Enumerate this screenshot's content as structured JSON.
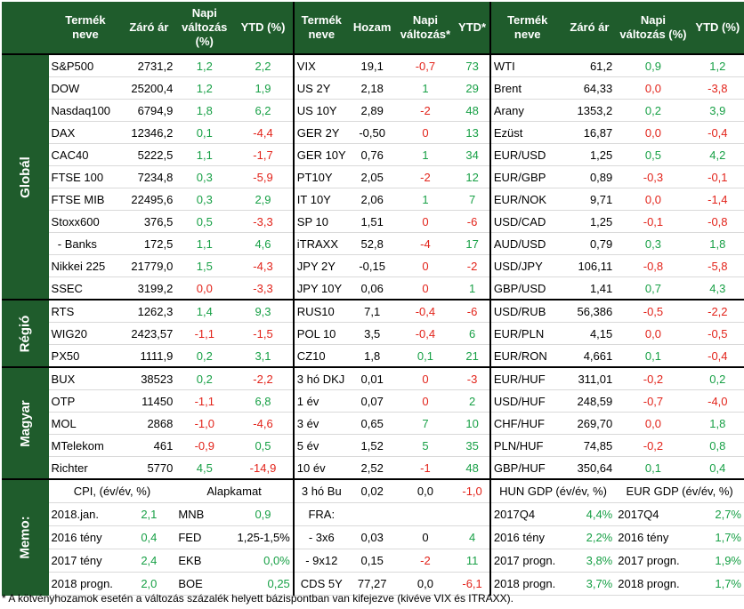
{
  "headers": {
    "col1": "Termék neve",
    "col2": "Záró ár",
    "col3": "Napi változás (%)",
    "col4": "YTD (%)",
    "col5": "Termék neve",
    "col6": "Hozam",
    "col7": "Napi változás*",
    "col8": "YTD*",
    "col9": "Termék neve",
    "col10": "Záró ár",
    "col11": "Napi változás (%)",
    "col12": "YTD (%)"
  },
  "sections": [
    {
      "label": "Globál",
      "rows": [
        [
          "S&P500",
          "2731,2",
          "1,2",
          "2,2",
          "VIX",
          "19,1",
          "-0,7",
          "73",
          "WTI",
          "61,2",
          "0,9",
          "1,2"
        ],
        [
          "DOW",
          "25200,4",
          "1,2",
          "1,9",
          "US 2Y",
          "2,18",
          "1",
          "29",
          "Brent",
          "64,33",
          "0,0",
          "-3,8"
        ],
        [
          "Nasdaq100",
          "6794,9",
          "1,8",
          "6,2",
          "US 10Y",
          "2,89",
          "-2",
          "48",
          "Arany",
          "1353,2",
          "0,2",
          "3,9"
        ],
        [
          "DAX",
          "12346,2",
          "0,1",
          "-4,4",
          "GER 2Y",
          "-0,50",
          "0",
          "13",
          "Ezüst",
          "16,87",
          "0,0",
          "-0,4"
        ],
        [
          "CAC40",
          "5222,5",
          "1,1",
          "-1,7",
          "GER 10Y",
          "0,76",
          "1",
          "34",
          "EUR/USD",
          "1,25",
          "0,5",
          "4,2"
        ],
        [
          "FTSE 100",
          "7234,8",
          "0,3",
          "-5,9",
          "PT10Y",
          "2,05",
          "-2",
          "12",
          "EUR/GBP",
          "0,89",
          "-0,3",
          "-0,1"
        ],
        [
          "FTSE MIB",
          "22495,6",
          "0,3",
          "2,9",
          "IT 10Y",
          "2,06",
          "1",
          "7",
          "EUR/NOK",
          "9,71",
          "0,0",
          "-1,4"
        ],
        [
          "Stoxx600",
          "376,5",
          "0,5",
          "-3,3",
          "SP 10",
          "1,51",
          "0",
          "-6",
          "USD/CAD",
          "1,25",
          "-0,1",
          "-0,8"
        ],
        [
          "  - Banks",
          "172,5",
          "1,1",
          "4,6",
          "iTRAXX",
          "52,8",
          "-4",
          "17",
          "AUD/USD",
          "0,79",
          "0,3",
          "1,8"
        ],
        [
          "Nikkei 225",
          "21779,0",
          "1,5",
          "-4,3",
          "JPY 2Y",
          "-0,15",
          "0",
          "-2",
          "USD/JPY",
          "106,11",
          "-0,8",
          "-5,8"
        ],
        [
          "SSEC",
          "3199,2",
          "0,0",
          "-3,3",
          "JPY 10Y",
          "0,06",
          "0",
          "1",
          "GBP/USD",
          "1,41",
          "0,7",
          "4,3"
        ]
      ]
    },
    {
      "label": "Régió",
      "rows": [
        [
          "RTS",
          "1262,3",
          "1,4",
          "9,3",
          "RUS10",
          "7,1",
          "-0,4",
          "-6",
          "USD/RUB",
          "56,386",
          "-0,5",
          "-2,2"
        ],
        [
          "WIG20",
          "2423,57",
          "-1,1",
          "-1,5",
          "POL 10",
          "3,5",
          "-0,4",
          "6",
          "EUR/PLN",
          "4,15",
          "0,0",
          "-0,5"
        ],
        [
          "PX50",
          "1111,9",
          "0,2",
          "3,1",
          "CZ10",
          "1,8",
          "0,1",
          "21",
          "EUR/RON",
          "4,661",
          "0,1",
          "-0,4"
        ]
      ]
    },
    {
      "label": "Magyar",
      "rows": [
        [
          "BUX",
          "38523",
          "0,2",
          "-2,2",
          "3 hó DKJ",
          "0,01",
          "0",
          "-3",
          "EUR/HUF",
          "311,01",
          "-0,2",
          "0,2"
        ],
        [
          "OTP",
          "11450",
          "-1,1",
          "6,8",
          "1 év",
          "0,07",
          "0",
          "2",
          "USD/HUF",
          "248,59",
          "-0,7",
          "-4,0"
        ],
        [
          "MOL",
          "2868",
          "-1,0",
          "-4,6",
          "3 év",
          "0,65",
          "7",
          "10",
          "CHF/HUF",
          "269,70",
          "0,0",
          "1,8"
        ],
        [
          "MTelekom",
          "461",
          "-0,9",
          "0,5",
          "5 év",
          "1,52",
          "5",
          "35",
          "PLN/HUF",
          "74,85",
          "-0,2",
          "0,8"
        ],
        [
          "Richter",
          "5770",
          "4,5",
          "-14,9",
          "10 év",
          "2,52",
          "-1",
          "48",
          "GBP/HUF",
          "350,64",
          "0,1",
          "0,4"
        ]
      ]
    }
  ],
  "memo": {
    "label": "Memo:",
    "header": [
      "CPI, (év/év, %)",
      "Alapkamat",
      "3 hó Bu",
      "0,02",
      "0,0",
      "-1,0",
      "HUN GDP (év/év, %)",
      "EUR GDP (év/év, %)"
    ],
    "rows": [
      [
        "2018.jan.",
        "2,1",
        "MNB",
        "0,9",
        "FRA:",
        "",
        "",
        "2017Q4",
        "4,4%",
        "2017Q4",
        "2,7%"
      ],
      [
        "2016 tény",
        "0,4",
        "FED",
        "1,25-1,5%",
        "- 3x6",
        "0,03",
        "0",
        "4",
        "2016 tény",
        "2,2%",
        "2016 tény",
        "1,7%"
      ],
      [
        "2017 tény",
        "2,4",
        "EKB",
        "0,0%",
        "- 9x12",
        "0,15",
        "-2",
        "11",
        "2017 progn.",
        "3,8%",
        "2017 progn.",
        "1,9%"
      ],
      [
        "2018 progn.",
        "2,0",
        "BOE",
        "0,25",
        "CDS 5Y",
        "77,27",
        "0,0",
        "-6,1",
        "2018 progn.",
        "3,7%",
        "2018 progn.",
        "1,7%"
      ]
    ]
  },
  "footnote": "* A kötvényhozamok esetén a változás százalék helyett bázispontban van kifejezve (kivéve VIX és ITRAXX).",
  "colors": {
    "header_bg": "#1f5c2c",
    "positive": "#18a046",
    "negative": "#e2231a"
  }
}
